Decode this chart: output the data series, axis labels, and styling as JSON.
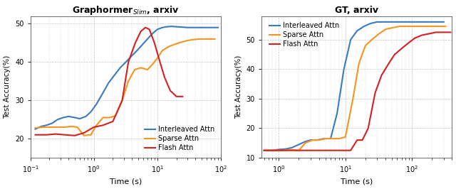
{
  "plot1": {
    "title_main": "Graphormer",
    "title_sub": "Slim",
    "title_rest": ", arxiv",
    "xlabel": "Time (s)",
    "ylabel": "Test Accuracy(%)",
    "xlim": [
      0.1,
      100
    ],
    "ylim": [
      15,
      52
    ],
    "yticks": [
      20,
      30,
      40,
      50
    ],
    "legend_entries": [
      "Interleaved Attn",
      "Sparse Attn",
      "Flash Attn"
    ],
    "colors": [
      "#3a7abf",
      "#f5941e",
      "#d42020"
    ],
    "interleaved": {
      "x": [
        0.12,
        0.15,
        0.18,
        0.22,
        0.27,
        0.33,
        0.4,
        0.5,
        0.6,
        0.75,
        0.9,
        1.1,
        1.4,
        1.7,
        2.1,
        2.6,
        3.2,
        3.9,
        4.8,
        5.8,
        7.0,
        8.5,
        10.0,
        12.0,
        14.0,
        17.0,
        20.0,
        25.0,
        30.0,
        40.0,
        55.0,
        70.0,
        90.0
      ],
      "y": [
        22.5,
        23.2,
        23.5,
        24.0,
        25.0,
        25.5,
        25.8,
        25.5,
        25.2,
        25.8,
        27.0,
        29.0,
        32.0,
        34.5,
        36.5,
        38.5,
        40.0,
        41.5,
        43.0,
        44.5,
        46.0,
        47.5,
        48.5,
        49.0,
        49.2,
        49.3,
        49.2,
        49.1,
        49.0,
        49.0,
        49.0,
        49.0,
        49.0
      ]
    },
    "sparse": {
      "x": [
        0.12,
        0.17,
        0.22,
        0.28,
        0.35,
        0.44,
        0.55,
        0.7,
        0.9,
        1.1,
        1.4,
        1.8,
        2.2,
        2.8,
        3.5,
        4.4,
        5.5,
        7.0,
        8.5,
        10.0,
        12.0,
        15.0,
        18.0,
        22.0,
        28.0,
        35.0,
        45.0,
        60.0,
        80.0
      ],
      "y": [
        22.8,
        23.0,
        23.0,
        23.0,
        23.0,
        23.2,
        23.0,
        20.8,
        21.0,
        23.5,
        25.5,
        25.5,
        26.0,
        30.0,
        35.0,
        38.0,
        38.5,
        38.0,
        39.5,
        41.0,
        43.0,
        44.0,
        44.5,
        45.0,
        45.5,
        45.8,
        46.0,
        46.0,
        46.0
      ]
    },
    "flash": {
      "x": [
        0.12,
        0.18,
        0.25,
        0.35,
        0.5,
        0.7,
        1.0,
        1.4,
        2.0,
        2.8,
        3.5,
        4.5,
        5.5,
        6.5,
        7.5,
        9.0,
        11.0,
        13.0,
        16.0,
        20.0,
        25.0
      ],
      "y": [
        21.0,
        21.0,
        21.2,
        21.0,
        20.8,
        21.5,
        23.0,
        23.5,
        24.5,
        30.0,
        40.0,
        45.0,
        48.0,
        49.0,
        48.5,
        45.0,
        40.0,
        36.0,
        32.5,
        31.0,
        31.0
      ]
    }
  },
  "plot2": {
    "title": "GT, arxiv",
    "xlabel": "Time (s)",
    "ylabel": "Test Accuracy(%)",
    "xlim": [
      0.55,
      400
    ],
    "ylim": [
      10,
      58
    ],
    "yticks": [
      10,
      20,
      30,
      40,
      50
    ],
    "legend_entries": [
      "Interleaved Attn",
      "Sparse Attn",
      "Flash Attn"
    ],
    "colors": [
      "#3a7abf",
      "#f5941e",
      "#d42020"
    ],
    "interleaved": {
      "x": [
        0.6,
        0.8,
        1.0,
        1.3,
        1.6,
        2.0,
        2.5,
        3.0,
        3.8,
        4.8,
        6.0,
        7.5,
        9.5,
        12.0,
        15.0,
        19.0,
        24.0,
        30.0,
        40.0,
        55.0,
        70.0,
        90.0,
        120.0,
        160.0,
        220.0,
        300.0
      ],
      "y": [
        12.5,
        12.5,
        12.8,
        13.0,
        13.5,
        14.5,
        15.5,
        16.0,
        16.0,
        16.5,
        16.5,
        25.0,
        40.0,
        50.0,
        53.0,
        54.5,
        55.5,
        56.0,
        56.0,
        56.0,
        56.0,
        56.0,
        56.0,
        56.0,
        56.0,
        56.0
      ]
    },
    "sparse": {
      "x": [
        0.6,
        0.9,
        1.2,
        1.5,
        2.0,
        2.5,
        3.2,
        4.0,
        5.0,
        6.5,
        8.0,
        10.0,
        13.0,
        16.0,
        20.0,
        25.0,
        32.0,
        40.0,
        50.0,
        65.0,
        85.0,
        110.0,
        140.0,
        180.0,
        240.0,
        320.0
      ],
      "y": [
        12.5,
        12.5,
        12.5,
        12.8,
        12.5,
        15.0,
        16.0,
        16.0,
        16.5,
        16.5,
        16.5,
        17.0,
        30.0,
        42.0,
        48.0,
        50.0,
        52.0,
        53.5,
        54.0,
        54.5,
        54.5,
        54.5,
        54.5,
        54.5,
        54.5,
        54.5
      ]
    },
    "flash": {
      "x": [
        0.6,
        1.0,
        2.0,
        4.0,
        7.0,
        12.0,
        15.0,
        18.0,
        22.0,
        28.0,
        35.0,
        45.0,
        55.0,
        70.0,
        90.0,
        110.0,
        140.0,
        180.0,
        230.0,
        300.0,
        380.0
      ],
      "y": [
        12.5,
        12.5,
        12.5,
        12.5,
        12.5,
        12.5,
        16.0,
        16.0,
        20.0,
        32.0,
        38.0,
        42.0,
        45.0,
        47.0,
        49.0,
        50.5,
        51.5,
        52.0,
        52.5,
        52.5,
        52.5
      ]
    }
  },
  "bg_color": "#ffffff",
  "grid_color": "#b0b0b0",
  "line_width": 1.5
}
